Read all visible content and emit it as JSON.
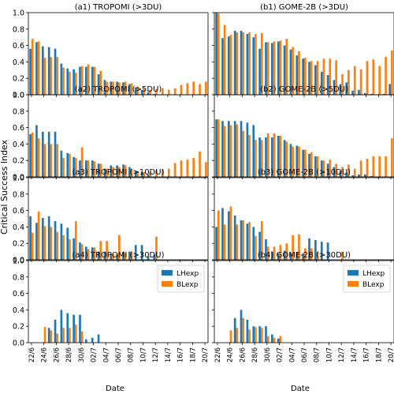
{
  "figure": {
    "ylabel": "Critical Success Index",
    "xlabel": "Date",
    "colors": {
      "LHexp": "#1f77b4",
      "BLexp": "#ff7f0e"
    },
    "legend": {
      "entries": [
        "LHexp",
        "BLexp"
      ],
      "placement": "top-right",
      "panels": [
        "a4",
        "b4"
      ]
    }
  },
  "chart_data": [
    {
      "id": "a1",
      "type": "bar",
      "title": "(a1) TROPOMI (>3DU)",
      "x_tick_labels": [
        "22/6",
        "24/6",
        "26/6",
        "28/6",
        "30/6",
        "02/7",
        "04/7",
        "06/7",
        "08/7",
        "10/7",
        "12/7",
        "14/7",
        "16/7",
        "18/7",
        "20/7"
      ],
      "ylim": [
        0,
        1.0
      ],
      "yticks": [
        "0.0",
        "0.2",
        "0.4",
        "0.6",
        "0.8",
        "1.0"
      ],
      "show_y_ticklabels": true,
      "grid": false,
      "series": [
        {
          "name": "LHexp",
          "values": [
            0.56,
            0.64,
            0.59,
            0.58,
            0.56,
            0.38,
            0.32,
            0.31,
            0.34,
            0.34,
            0.34,
            0.25,
            0.18,
            0.16,
            0.16,
            0.15,
            0.13,
            0.09,
            0.06,
            0.03,
            0.01,
            0.0,
            0.0,
            0.0,
            0.0,
            0.0,
            0.0,
            0.0,
            0.0
          ]
        },
        {
          "name": "BLexp",
          "values": [
            0.68,
            0.65,
            0.45,
            0.46,
            0.46,
            0.33,
            0.28,
            0.27,
            0.35,
            0.37,
            0.34,
            0.29,
            0.16,
            0.16,
            0.15,
            0.16,
            0.14,
            0.1,
            0.07,
            0.06,
            0.07,
            0.08,
            0.06,
            0.08,
            0.12,
            0.14,
            0.16,
            0.13,
            0.16
          ]
        }
      ]
    },
    {
      "id": "b1",
      "type": "bar",
      "title": "(b1) GOME-2B (>3DU)",
      "x_tick_labels": [
        "22/6",
        "24/6",
        "26/6",
        "28/6",
        "30/6",
        "02/7",
        "04/7",
        "06/7",
        "08/7",
        "10/7",
        "12/7",
        "14/7",
        "16/7",
        "18/7",
        "20/7"
      ],
      "ylim": [
        0,
        1.0
      ],
      "yticks": [
        "0.0",
        "0.2",
        "0.4",
        "0.6",
        "0.8",
        "1.0"
      ],
      "show_y_ticklabels": false,
      "grid": false,
      "series": [
        {
          "name": "LHexp",
          "values": [
            1.0,
            0.69,
            0.71,
            0.78,
            0.78,
            0.74,
            0.7,
            0.56,
            0.64,
            0.63,
            0.65,
            0.6,
            0.55,
            0.48,
            0.44,
            0.4,
            0.36,
            0.28,
            0.24,
            0.18,
            0.13,
            0.15,
            0.05,
            0.06,
            0.02,
            0.01,
            0.0,
            0.01,
            0.13
          ]
        },
        {
          "name": "BLexp",
          "values": [
            0.99,
            0.85,
            0.73,
            0.76,
            0.76,
            0.76,
            0.74,
            0.75,
            0.64,
            0.65,
            0.66,
            0.68,
            0.58,
            0.53,
            0.45,
            0.41,
            0.41,
            0.44,
            0.44,
            0.42,
            0.25,
            0.3,
            0.35,
            0.31,
            0.41,
            0.43,
            0.35,
            0.46,
            0.54
          ]
        }
      ]
    },
    {
      "id": "a2",
      "type": "bar",
      "title": "(a2) TROPOMI (>5DU)",
      "x_tick_labels": [
        "22/6",
        "24/6",
        "26/6",
        "28/6",
        "30/6",
        "02/7",
        "04/7",
        "06/7",
        "08/7",
        "10/7",
        "12/7",
        "14/7",
        "16/7",
        "18/7",
        "20/7"
      ],
      "ylim": [
        0,
        1.0
      ],
      "yticks": [
        "0.0",
        "0.2",
        "0.4",
        "0.6",
        "0.8",
        "1.0"
      ],
      "show_y_ticklabels": true,
      "grid": false,
      "series": [
        {
          "name": "LHexp",
          "values": [
            0.52,
            0.63,
            0.55,
            0.55,
            0.55,
            0.32,
            0.29,
            0.24,
            0.2,
            0.2,
            0.2,
            0.16,
            0.1,
            0.14,
            0.14,
            0.15,
            0.12,
            0.07,
            0.06,
            0.03,
            0.0,
            0.0,
            0.0,
            0.0,
            0.0,
            0.0,
            0.0,
            0.0,
            0.0
          ]
        },
        {
          "name": "BLexp",
          "values": [
            0.54,
            0.47,
            0.4,
            0.4,
            0.4,
            0.23,
            0.28,
            0.23,
            0.36,
            0.2,
            0.19,
            0.16,
            0.1,
            0.12,
            0.12,
            0.14,
            0.1,
            0.07,
            0.06,
            0.06,
            0.08,
            0.09,
            0.1,
            0.17,
            0.2,
            0.21,
            0.23,
            0.31,
            0.18
          ]
        }
      ]
    },
    {
      "id": "b2",
      "type": "bar",
      "title": "(b2) GOME-2B (>5DU)",
      "x_tick_labels": [
        "22/6",
        "24/6",
        "26/6",
        "28/6",
        "30/6",
        "02/7",
        "04/7",
        "06/7",
        "08/7",
        "10/7",
        "12/7",
        "14/7",
        "16/7",
        "18/7",
        "20/7"
      ],
      "ylim": [
        0,
        1.0
      ],
      "yticks": [
        "0.0",
        "0.2",
        "0.4",
        "0.6",
        "0.8",
        "1.0"
      ],
      "show_y_ticklabels": false,
      "grid": false,
      "series": [
        {
          "name": "LHexp",
          "values": [
            0.7,
            0.68,
            0.68,
            0.68,
            0.68,
            0.66,
            0.63,
            0.48,
            0.48,
            0.48,
            0.5,
            0.45,
            0.4,
            0.38,
            0.33,
            0.28,
            0.25,
            0.2,
            0.16,
            0.12,
            0.07,
            0.05,
            0.02,
            0.03,
            0.03,
            0.01,
            0.0,
            0.0,
            0.0
          ]
        },
        {
          "name": "BLexp",
          "values": [
            0.7,
            0.62,
            0.63,
            0.64,
            0.56,
            0.51,
            0.45,
            0.45,
            0.53,
            0.53,
            0.5,
            0.43,
            0.37,
            0.37,
            0.33,
            0.3,
            0.25,
            0.2,
            0.21,
            0.16,
            0.12,
            0.15,
            0.1,
            0.2,
            0.22,
            0.25,
            0.25,
            0.25,
            0.47
          ]
        }
      ]
    },
    {
      "id": "a3",
      "type": "bar",
      "title": "(a3) TROPOMI (>10DU)",
      "x_tick_labels": [
        "22/6",
        "24/6",
        "26/6",
        "28/6",
        "30/6",
        "02/7",
        "04/7",
        "06/7",
        "08/7",
        "10/7",
        "12/7",
        "14/7",
        "16/7",
        "18/7",
        "20/7"
      ],
      "ylim": [
        0,
        1.0
      ],
      "yticks": [
        "0.0",
        "0.2",
        "0.4",
        "0.6",
        "0.8",
        "1.0"
      ],
      "show_y_ticklabels": true,
      "grid": false,
      "series": [
        {
          "name": "LHexp",
          "values": [
            0.53,
            0.45,
            0.51,
            0.53,
            0.47,
            0.44,
            0.39,
            0.26,
            0.21,
            0.16,
            0.15,
            0.1,
            0.1,
            0.07,
            0.07,
            0.1,
            0.1,
            0.18,
            0.18,
            0.04,
            0.06,
            0.0,
            0.0,
            0.0,
            0.0,
            0.0,
            0.0,
            0.0,
            0.0
          ]
        },
        {
          "name": "BLexp",
          "values": [
            0.33,
            0.59,
            0.41,
            0.4,
            0.34,
            0.3,
            0.25,
            0.47,
            0.19,
            0.13,
            0.15,
            0.23,
            0.23,
            0.07,
            0.3,
            0.08,
            0.1,
            0.0,
            0.0,
            0.0,
            0.28,
            0.0,
            0.0,
            0.0,
            0.0,
            0.0,
            0.0,
            0.0,
            0.0
          ]
        }
      ]
    },
    {
      "id": "b3",
      "type": "bar",
      "title": "(b3) GOME-2B (>10DU)",
      "x_tick_labels": [
        "22/6",
        "24/6",
        "26/6",
        "28/6",
        "30/6",
        "02/7",
        "04/7",
        "06/7",
        "08/7",
        "10/7",
        "12/7",
        "14/7",
        "16/7",
        "18/7",
        "20/7"
      ],
      "ylim": [
        0,
        1.0
      ],
      "yticks": [
        "0.0",
        "0.2",
        "0.4",
        "0.6",
        "0.8",
        "1.0"
      ],
      "show_y_ticklabels": false,
      "grid": false,
      "series": [
        {
          "name": "LHexp",
          "values": [
            0.4,
            0.63,
            0.59,
            0.54,
            0.48,
            0.44,
            0.4,
            0.34,
            0.25,
            0.1,
            0.08,
            0.11,
            0.08,
            0.09,
            0.08,
            0.26,
            0.24,
            0.22,
            0.21,
            0.0,
            0.0,
            0.0,
            0.0,
            0.0,
            0.0,
            0.0,
            0.0,
            0.0,
            0.0
          ]
        },
        {
          "name": "BLexp",
          "values": [
            0.6,
            0.43,
            0.65,
            0.43,
            0.48,
            0.46,
            0.29,
            0.47,
            0.16,
            0.16,
            0.18,
            0.2,
            0.3,
            0.31,
            0.14,
            0.14,
            0.1,
            0.0,
            0.0,
            0.0,
            0.1,
            0.0,
            0.0,
            0.0,
            0.0,
            0.0,
            0.0,
            0.0,
            0.0
          ]
        }
      ]
    },
    {
      "id": "a4",
      "type": "bar",
      "title": "(a4) TROPOMI (>30DU)",
      "x_tick_labels": [
        "22/6",
        "24/6",
        "26/6",
        "28/6",
        "30/6",
        "02/7",
        "04/7",
        "06/7",
        "08/7",
        "10/7",
        "12/7",
        "14/7",
        "16/7",
        "18/7",
        "20/7"
      ],
      "ylim": [
        0,
        1.0
      ],
      "yticks": [
        "0.0",
        "0.2",
        "0.4",
        "0.6",
        "0.8",
        "1.0"
      ],
      "show_y_ticklabels": true,
      "grid": false,
      "series": [
        {
          "name": "LHexp",
          "values": [
            0.0,
            0.0,
            0.0,
            0.18,
            0.28,
            0.4,
            0.36,
            0.34,
            0.34,
            0.04,
            0.06,
            0.1,
            0.0,
            0.0,
            0.0,
            0.0,
            0.0,
            0.0,
            0.0,
            0.0,
            0.0,
            0.0,
            0.0,
            0.0,
            0.0,
            0.0,
            0.0,
            0.0,
            0.0
          ]
        },
        {
          "name": "BLexp",
          "values": [
            0.0,
            0.0,
            0.19,
            0.15,
            0.11,
            0.18,
            0.18,
            0.22,
            0.14,
            0.0,
            0.0,
            0.0,
            0.0,
            0.0,
            0.0,
            0.0,
            0.0,
            0.0,
            0.0,
            0.0,
            0.0,
            0.0,
            0.0,
            0.0,
            0.0,
            0.0,
            0.0,
            0.0,
            0.0
          ]
        }
      ]
    },
    {
      "id": "b4",
      "type": "bar",
      "title": "(b4) GOME-2B (>30DU)",
      "x_tick_labels": [
        "22/6",
        "24/6",
        "26/6",
        "28/6",
        "30/6",
        "02/7",
        "04/7",
        "06/7",
        "08/7",
        "10/7",
        "12/7",
        "14/7",
        "16/7",
        "18/7",
        "20/7"
      ],
      "ylim": [
        0,
        1.0
      ],
      "yticks": [
        "0.0",
        "0.2",
        "0.4",
        "0.6",
        "0.8",
        "1.0"
      ],
      "show_y_ticklabels": false,
      "grid": false,
      "series": [
        {
          "name": "LHexp",
          "values": [
            0.0,
            0.0,
            0.0,
            0.3,
            0.4,
            0.28,
            0.2,
            0.2,
            0.2,
            0.1,
            0.05,
            0.0,
            0.0,
            0.0,
            0.0,
            0.0,
            0.0,
            0.0,
            0.0,
            0.0,
            0.0,
            0.0,
            0.0,
            0.0,
            0.0,
            0.0,
            0.0,
            0.0,
            0.0
          ]
        },
        {
          "name": "BLexp",
          "values": [
            0.0,
            0.0,
            0.15,
            0.18,
            0.3,
            0.16,
            0.19,
            0.18,
            0.08,
            0.06,
            0.08,
            0.0,
            0.0,
            0.0,
            0.0,
            0.0,
            0.0,
            0.0,
            0.0,
            0.0,
            0.0,
            0.0,
            0.0,
            0.0,
            0.0,
            0.0,
            0.0,
            0.0,
            0.0
          ]
        }
      ]
    }
  ]
}
